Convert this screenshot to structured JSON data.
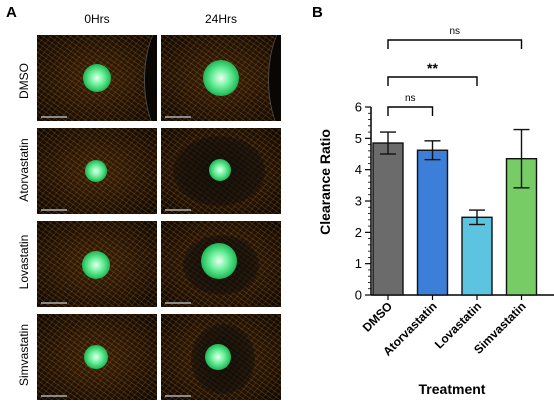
{
  "panel_a": {
    "letter": "A",
    "columns": [
      "0Hrs",
      "24Hrs"
    ],
    "rows": [
      "DMSO",
      "Atorvastatin",
      "Lovastatin",
      "Simvastatin"
    ]
  },
  "panel_b": {
    "letter": "B"
  },
  "colors": {
    "DMSO": "#6b6b6b",
    "Atorvastatin": "#3c7fd9",
    "Lovastatin": "#5cc3e0",
    "Simvastatin": "#77cc66",
    "spheroid_green": "#2fd06a"
  },
  "chart_data": {
    "type": "bar",
    "categories": [
      "DMSO",
      "Atorvastatin",
      "Lovastatin",
      "Simvastatin"
    ],
    "values": [
      4.85,
      4.62,
      2.48,
      4.35
    ],
    "error": [
      0.35,
      0.3,
      0.23,
      0.93
    ],
    "xlabel": "Treatment",
    "ylabel": "Clearance Ratio",
    "ylim": [
      0,
      6
    ],
    "yticks": [
      "0",
      "1",
      "2",
      "3",
      "4",
      "5",
      "6"
    ],
    "significance": [
      {
        "from": "DMSO",
        "to": "Simvastatin",
        "label": "ns"
      },
      {
        "from": "DMSO",
        "to": "Lovastatin",
        "label": "**"
      },
      {
        "from": "DMSO",
        "to": "Atorvastatin",
        "label": "ns"
      }
    ],
    "grid": false,
    "legend": "none"
  }
}
